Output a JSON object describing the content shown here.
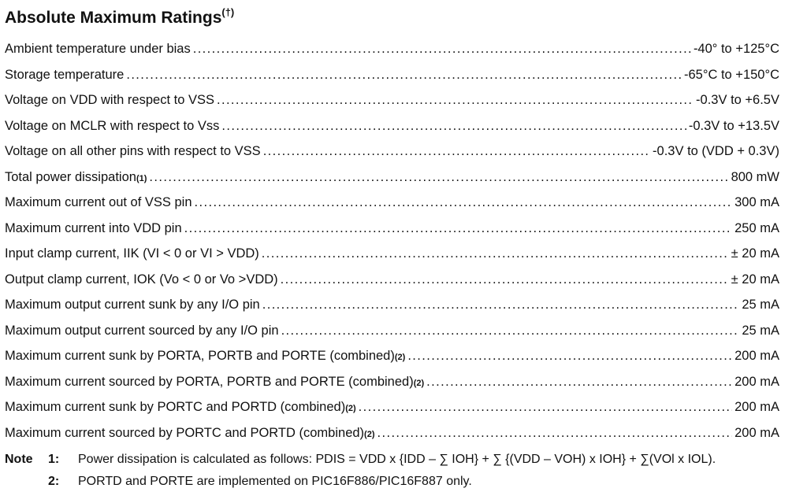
{
  "title": "Absolute Maximum Ratings",
  "title_sup": "(†)",
  "rows": [
    {
      "label": "Ambient temperature under bias",
      "sup": "",
      "value": "-40° to +125°C"
    },
    {
      "label": "Storage temperature",
      "sup": "",
      "value": "-65°C to +150°C"
    },
    {
      "label": "Voltage on VDD with respect to VSS",
      "sup": "",
      "value": "-0.3V to +6.5V"
    },
    {
      "label": "Voltage on MCLR with respect to Vss",
      "sup": "",
      "value": "-0.3V to +13.5V"
    },
    {
      "label": "Voltage on all other pins with respect to VSS",
      "sup": "",
      "value": "-0.3V to (VDD + 0.3V)"
    },
    {
      "label": "Total power dissipation",
      "sup": "(1)",
      "value": "800 mW"
    },
    {
      "label": "Maximum current out of VSS pin",
      "sup": "",
      "value": "300 mA"
    },
    {
      "label": "Maximum current into VDD pin",
      "sup": "",
      "value": "250 mA"
    },
    {
      "label": "Input clamp current, IIK (VI < 0 or VI > VDD)",
      "sup": "",
      "value": "± 20 mA"
    },
    {
      "label": "Output clamp current, IOK (Vo < 0 or Vo >VDD)",
      "sup": "",
      "value": "± 20 mA"
    },
    {
      "label": "Maximum output current sunk by any I/O pin",
      "sup": "",
      "value": "25 mA"
    },
    {
      "label": "Maximum output current sourced by any I/O pin",
      "sup": "",
      "value": "25 mA"
    },
    {
      "label": "Maximum current sunk by PORTA, PORTB and PORTE (combined)",
      "sup": "(2)",
      "value": "200 mA"
    },
    {
      "label": "Maximum current sourced by PORTA, PORTB and PORTE (combined)",
      "sup": "(2)",
      "value": "200 mA"
    },
    {
      "label": "Maximum current sunk by PORTC and PORTD (combined)",
      "sup": "(2)",
      "value": "200 mA"
    },
    {
      "label": "Maximum current sourced by PORTC and PORTD (combined)",
      "sup": "(2)",
      "value": "200 mA"
    }
  ],
  "notes": {
    "label": "Note",
    "items": [
      {
        "num": "1:",
        "text": "Power dissipation is calculated as follows: PDIS = VDD x {IDD – ∑ IOH} + ∑ {(VDD – VOH) x IOH} + ∑(VOl x IOL)."
      },
      {
        "num": "2:",
        "text": "PORTD and PORTE are implemented on PIC16F886/PIC16F887 only."
      }
    ]
  }
}
